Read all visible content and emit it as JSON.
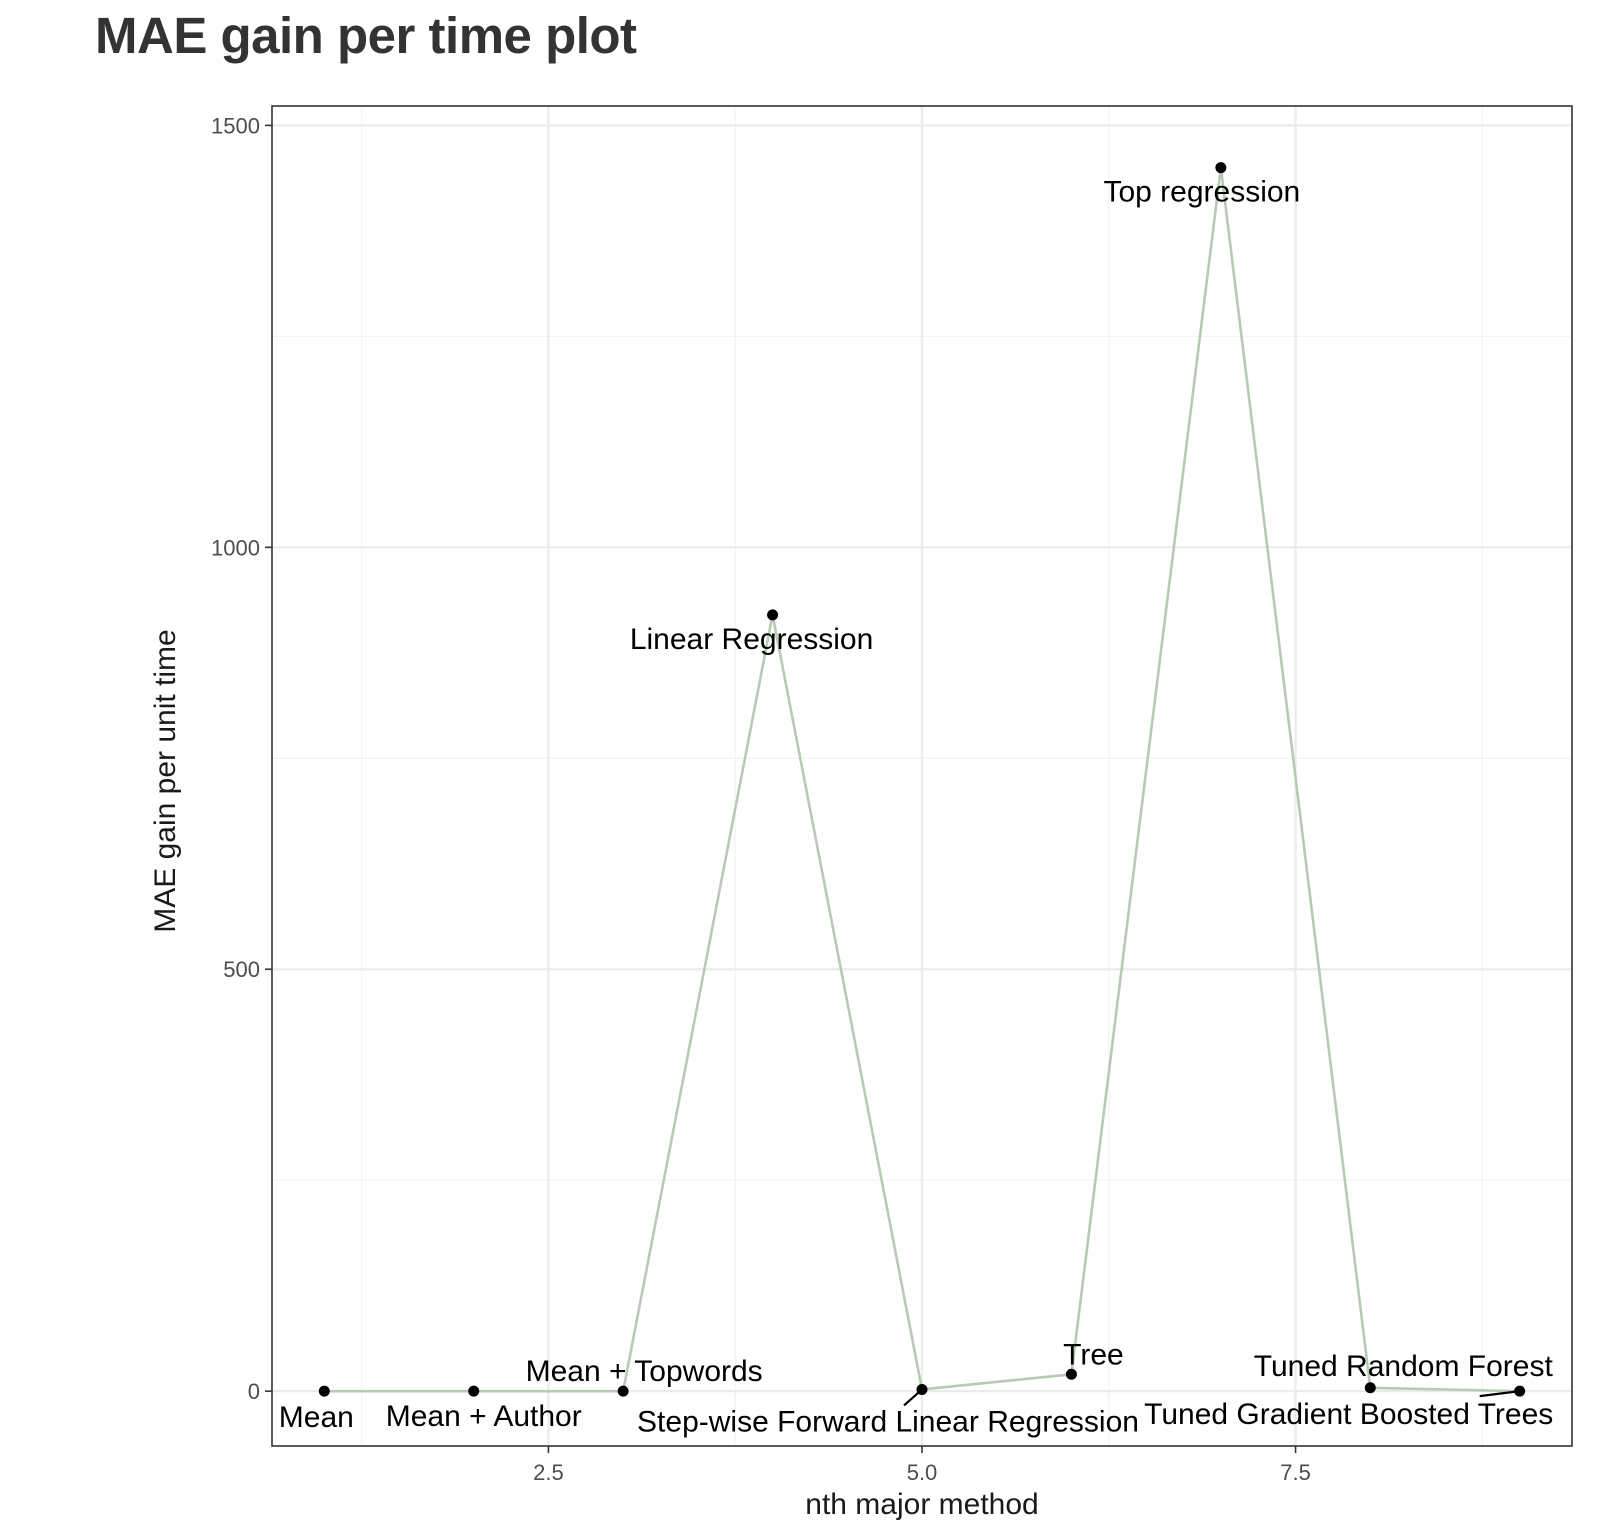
{
  "chart_data": {
    "type": "line",
    "title": "MAE gain per time plot",
    "xlabel": "nth major method",
    "ylabel": "MAE gain per unit time",
    "xlim": [
      0.65,
      9.35
    ],
    "ylim": [
      -65,
      1523
    ],
    "x_ticks": [
      2.5,
      5.0,
      7.5
    ],
    "x_tick_labels": [
      "2.5",
      "5.0",
      "7.5"
    ],
    "y_ticks": [
      0,
      500,
      1000,
      1500
    ],
    "y_tick_labels": [
      "0",
      "500",
      "1000",
      "1500"
    ],
    "grid": true,
    "line_color": "#b5cbb2",
    "point_color": "#000000",
    "points": [
      {
        "x": 1,
        "y": 0,
        "label": "Mean"
      },
      {
        "x": 2,
        "y": 0,
        "label": "Mean + Author"
      },
      {
        "x": 3,
        "y": 0,
        "label": "Mean + Topwords"
      },
      {
        "x": 4,
        "y": 920,
        "label": "Linear Regression"
      },
      {
        "x": 5,
        "y": 2,
        "label": "Step-wise Forward Linear Regression"
      },
      {
        "x": 6,
        "y": 20,
        "label": "Tree"
      },
      {
        "x": 7,
        "y": 1450,
        "label": "Top regression"
      },
      {
        "x": 8,
        "y": 4,
        "label": "Tuned Random Forest"
      },
      {
        "x": 9,
        "y": 0,
        "label": "Tuned Gradient Boosted Trees"
      }
    ]
  }
}
